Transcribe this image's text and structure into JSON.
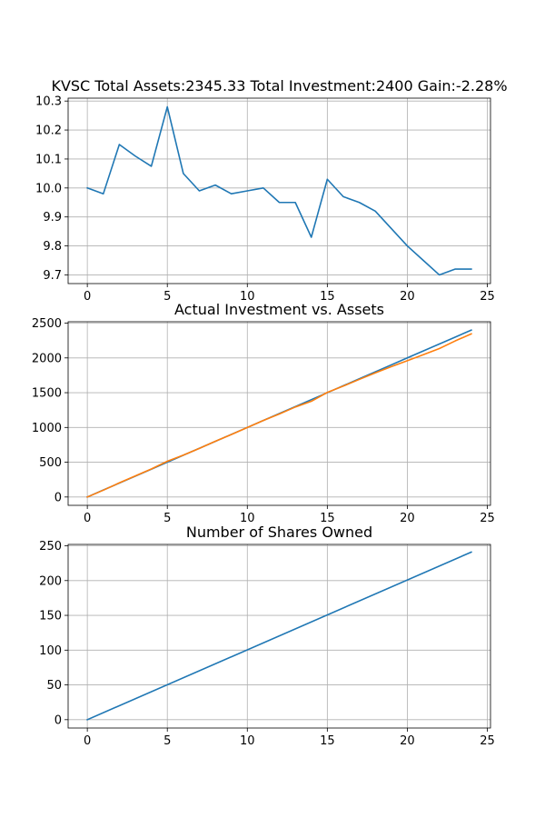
{
  "chart_data": [
    {
      "type": "line",
      "title": "KVSC Total Assets:2345.33  Total Investment:2400  Gain:-2.28%",
      "xlabel": "",
      "ylabel": "",
      "xlim": [
        -1.2,
        25.2
      ],
      "ylim": [
        9.67,
        10.31
      ],
      "xticks": [
        0,
        5,
        10,
        15,
        20,
        25
      ],
      "yticks": [
        9.7,
        9.8,
        9.9,
        10.0,
        10.1,
        10.2,
        10.3
      ],
      "ytick_labels": [
        "9.7",
        "9.8",
        "9.9",
        "10.0",
        "10.1",
        "10.2",
        "10.3"
      ],
      "grid": true,
      "series": [
        {
          "color": "#1f77b4",
          "x": [
            0,
            1,
            2,
            3,
            4,
            5,
            6,
            7,
            8,
            9,
            10,
            11,
            12,
            13,
            14,
            15,
            16,
            17,
            18,
            19,
            20,
            21,
            22,
            23,
            24
          ],
          "values": [
            10.0,
            9.98,
            10.15,
            10.11,
            10.075,
            10.28,
            10.05,
            9.99,
            10.01,
            9.98,
            9.99,
            10.0,
            9.95,
            9.95,
            9.83,
            10.03,
            9.97,
            9.95,
            9.92,
            9.86,
            9.8,
            9.75,
            9.7,
            9.72,
            9.72
          ]
        }
      ]
    },
    {
      "type": "line",
      "title": "Actual Investment vs. Assets",
      "xlabel": "",
      "ylabel": "",
      "xlim": [
        -1.2,
        25.2
      ],
      "ylim": [
        -120,
        2520
      ],
      "xticks": [
        0,
        5,
        10,
        15,
        20,
        25
      ],
      "yticks": [
        0,
        500,
        1000,
        1500,
        2000,
        2500
      ],
      "ytick_labels": [
        "0",
        "500",
        "1000",
        "1500",
        "2000",
        "2500"
      ],
      "grid": true,
      "series": [
        {
          "color": "#1f77b4",
          "x": [
            0,
            1,
            2,
            3,
            4,
            5,
            6,
            7,
            8,
            9,
            10,
            11,
            12,
            13,
            14,
            15,
            16,
            17,
            18,
            19,
            20,
            21,
            22,
            23,
            24
          ],
          "values": [
            0,
            100,
            200,
            300,
            400,
            500,
            600,
            700,
            800,
            900,
            1000,
            1100,
            1200,
            1300,
            1400,
            1500,
            1600,
            1700,
            1800,
            1900,
            2000,
            2100,
            2200,
            2300,
            2400
          ]
        },
        {
          "color": "#ff7f0e",
          "x": [
            0,
            1,
            2,
            3,
            4,
            5,
            6,
            7,
            8,
            9,
            10,
            11,
            12,
            13,
            14,
            15,
            16,
            17,
            18,
            19,
            20,
            21,
            22,
            23,
            24
          ],
          "values": [
            0,
            98,
            203,
            303,
            403,
            514,
            602,
            699,
            801,
            898,
            999,
            1100,
            1194,
            1294,
            1376,
            1504,
            1595,
            1691,
            1785,
            1874,
            1960,
            2047,
            2134,
            2245,
            2345.33
          ]
        }
      ]
    },
    {
      "type": "line",
      "title": "Number of Shares Owned",
      "xlabel": "",
      "ylabel": "",
      "xlim": [
        -1.2,
        25.2
      ],
      "ylim": [
        -12,
        252
      ],
      "xticks": [
        0,
        5,
        10,
        15,
        20,
        25
      ],
      "yticks": [
        0,
        50,
        100,
        150,
        200,
        250
      ],
      "ytick_labels": [
        "0",
        "50",
        "100",
        "150",
        "200",
        "250"
      ],
      "grid": true,
      "series": [
        {
          "color": "#1f77b4",
          "x": [
            0,
            24
          ],
          "values": [
            0,
            241
          ]
        }
      ]
    }
  ]
}
